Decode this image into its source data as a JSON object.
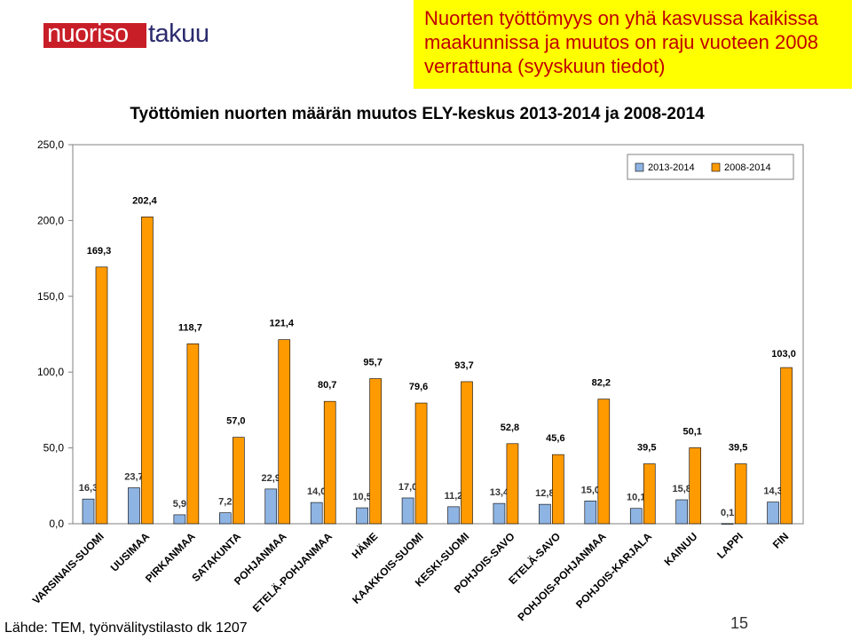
{
  "logo": {
    "part1": "nuoriso",
    "part2": "takuu"
  },
  "headline": "Nuorten työttömyys on yhä kasvussa kaikissa maakunnissa ja muutos on raju vuoteen 2008 verrattuna (syyskuun tiedot)",
  "source": "Lähde: TEM, työnvälitystilasto dk 1207",
  "page_number": "15",
  "colors": {
    "series_2013_2014": "#8eb4e3",
    "series_2008_2014": "#ff9a00",
    "headline_bg": "#ffff00",
    "headline_text": "#c00000",
    "logo_red": "#c81e28",
    "logo_navy": "#2b2b6e"
  },
  "chart_data": {
    "type": "bar",
    "title": "Työttömien nuorten määrän muutos ELY-keskus 2013-2014 ja 2008-2014",
    "xlabel": "",
    "ylabel": "",
    "ylim": [
      0,
      250
    ],
    "yticks": [
      "0,0",
      "50,0",
      "100,0",
      "150,0",
      "200,0",
      "250,0"
    ],
    "grid": false,
    "legend_position": "top-right",
    "categories": [
      "VARSINAIS-SUOMI",
      "UUSIMAA",
      "PIRKANMAA",
      "SATAKUNTA",
      "POHJANMAA",
      "ETELÄ-POHJANMAA",
      "HÄME",
      "KAAKKOIS-SUOMI",
      "KESKI-SUOMI",
      "POHJOIS-SAVO",
      "ETELÄ-SAVO",
      "POHJOIS-POHJANMAA",
      "POHJOIS-KARJALA",
      "KAINUU",
      "LAPPI",
      "FIN"
    ],
    "series": [
      {
        "name": "2013-2014",
        "color": "#8eb4e3",
        "values": [
          16.3,
          23.7,
          5.9,
          7.2,
          22.9,
          14.0,
          10.5,
          17.0,
          11.2,
          13.4,
          12.8,
          15.0,
          10.1,
          15.8,
          0.1,
          14.3
        ],
        "labels": [
          "16,3",
          "23,7",
          "5,9",
          "7,2",
          "22,9",
          "14,0",
          "10,5",
          "17,0",
          "11,2",
          "13,4",
          "12,8",
          "15,0",
          "10,1",
          "15,8",
          "0,1",
          "14,3"
        ]
      },
      {
        "name": "2008-2014",
        "color": "#ff9a00",
        "values": [
          169.3,
          202.4,
          118.7,
          57.0,
          121.4,
          80.7,
          95.7,
          79.6,
          93.7,
          52.8,
          45.6,
          82.2,
          39.5,
          50.1,
          39.5,
          103.0
        ],
        "labels": [
          "169,3",
          "202,4",
          "118,7",
          "57,0",
          "121,4",
          "80,7",
          "95,7",
          "79,6",
          "93,7",
          "52,8",
          "45,6",
          "82,2",
          "39,5",
          "50,1",
          "39,5",
          "103,0"
        ]
      }
    ]
  }
}
